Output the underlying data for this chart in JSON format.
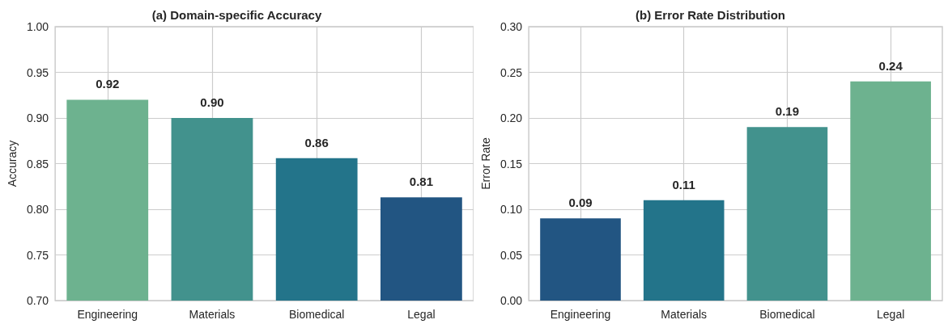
{
  "chart_data": [
    {
      "type": "bar",
      "title": "(a) Domain-specific Accuracy",
      "ylabel": "Accuracy",
      "categories": [
        "Engineering",
        "Materials",
        "Biomedical",
        "Legal"
      ],
      "values": [
        0.92,
        0.9,
        0.856,
        0.813
      ],
      "value_labels": [
        "0.92",
        "0.90",
        "0.86",
        "0.81"
      ],
      "colors": [
        "#6db28f",
        "#42928d",
        "#23748a",
        "#225582"
      ],
      "ylim": [
        0.7,
        1.0
      ],
      "yticks": [
        {
          "value": 0.7,
          "label": "0.70"
        },
        0.75,
        {
          "value": 0.8,
          "label": "0.80"
        },
        0.85,
        {
          "value": 0.9,
          "label": "0.90"
        },
        0.95,
        {
          "value": 1.0,
          "label": "1.00"
        }
      ],
      "grid": true
    },
    {
      "type": "bar",
      "title": "(b) Error Rate Distribution",
      "ylabel": "Error Rate",
      "categories": [
        "Engineering",
        "Materials",
        "Biomedical",
        "Legal"
      ],
      "values": [
        0.09,
        0.11,
        0.19,
        0.24
      ],
      "value_labels": [
        "0.09",
        "0.11",
        "0.19",
        "0.24"
      ],
      "colors": [
        "#225582",
        "#23748a",
        "#42928d",
        "#6db28f"
      ],
      "ylim": [
        0,
        0.3
      ],
      "yticks": [
        {
          "value": 0,
          "label": "0.00"
        },
        0.05,
        {
          "value": 0.1,
          "label": "0.10"
        },
        0.15,
        {
          "value": 0.2,
          "label": "0.20"
        },
        0.25,
        {
          "value": 0.3,
          "label": "0.30"
        }
      ],
      "grid": true
    }
  ]
}
